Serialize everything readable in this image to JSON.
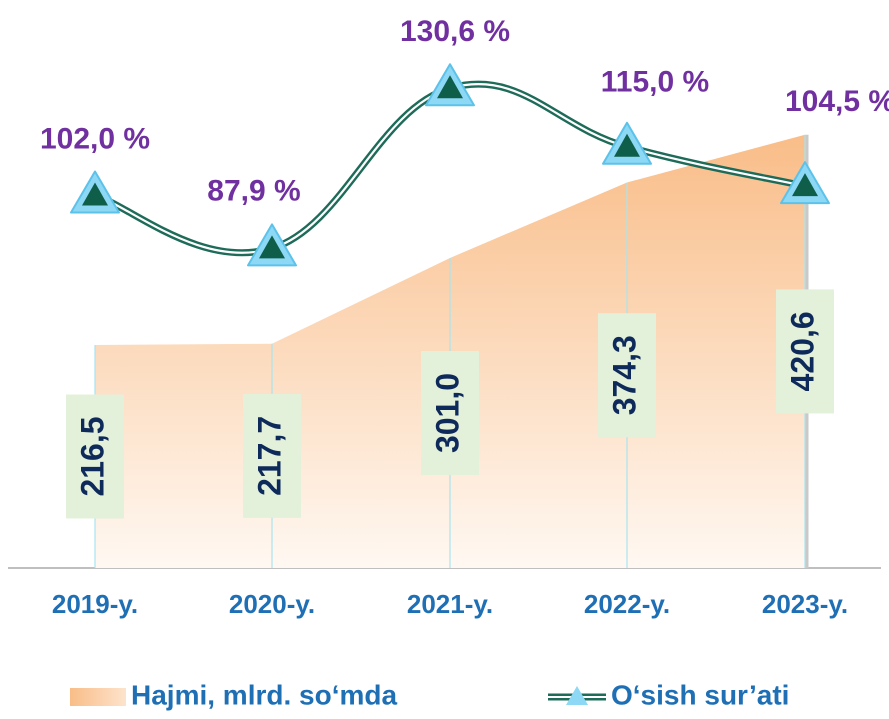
{
  "chart_data": {
    "type": "combo",
    "categories": [
      "2019-y.",
      "2020-y.",
      "2021-y.",
      "2022-y.",
      "2023-y."
    ],
    "series": [
      {
        "name": "Hajmi, mlrd. so‘mda",
        "type": "area",
        "color": "#f9bf8c",
        "values": [
          216.5,
          217.7,
          301.0,
          374.3,
          420.6
        ],
        "value_labels": [
          "216,5",
          "217,7",
          "301,0",
          "374,3",
          "420,6"
        ]
      },
      {
        "name": "O‘sish sur’ati",
        "type": "line",
        "axis": "y2",
        "color": "#1d6b58",
        "values": [
          102.0,
          87.9,
          130.6,
          115.0,
          104.5
        ],
        "value_labels": [
          "102,0 %",
          "87,9 %",
          "130,6 %",
          "115,0 %",
          "104,5 %"
        ]
      }
    ],
    "ylim": [
      0,
      450
    ],
    "y2lim": [
      0,
      140
    ],
    "legend": "bottom"
  }
}
